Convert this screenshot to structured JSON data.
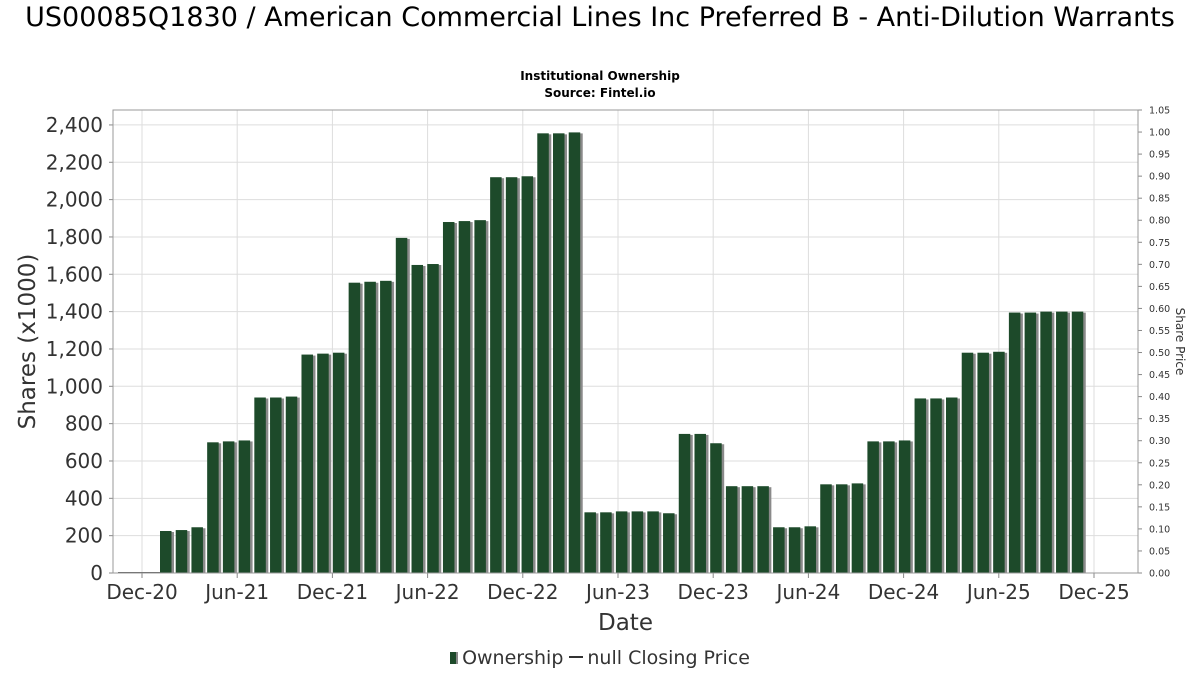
{
  "chart_data": {
    "type": "bar",
    "title": "US00085Q1830 / American Commercial Lines Inc Preferred B - Anti-Dilution Warrants",
    "subtitle": "Institutional Ownership",
    "source": "Source: Fintel.io",
    "xlabel": "Date",
    "ylabel": "Shares (x1000)",
    "y2label": "Share Price",
    "ylim": [
      0,
      2480
    ],
    "y2lim": [
      0,
      1.05
    ],
    "y_ticks": [
      0,
      200,
      400,
      600,
      800,
      1000,
      1200,
      1400,
      1600,
      1800,
      2000,
      2200,
      2400
    ],
    "y_tick_labels": [
      "0",
      "200",
      "400",
      "600",
      "800",
      "1,000",
      "1,200",
      "1,400",
      "1,600",
      "1,800",
      "2,000",
      "2,200",
      "2,400"
    ],
    "y2_ticks": [
      "0.00",
      "0.05",
      "0.10",
      "0.15",
      "0.20",
      "0.25",
      "0.30",
      "0.35",
      "0.40",
      "0.45",
      "0.50",
      "0.55",
      "0.60",
      "0.65",
      "0.70",
      "0.75",
      "0.80",
      "0.85",
      "0.90",
      "0.95",
      "1.00",
      "1.05"
    ],
    "x_ticks": [
      "Dec-20",
      "Jun-21",
      "Dec-21",
      "Jun-22",
      "Dec-22",
      "Jun-23",
      "Dec-23",
      "Jun-24",
      "Dec-24",
      "Jun-25",
      "Dec-25"
    ],
    "grid": true,
    "legend_position": "bottom",
    "legend": [
      {
        "name": "Ownership",
        "kind": "bar"
      },
      {
        "name": "null Closing Price",
        "kind": "line"
      }
    ],
    "series": [
      {
        "name": "Ownership",
        "color": "#1d4a2a",
        "values": [
          225,
          230,
          245,
          700,
          705,
          710,
          940,
          940,
          945,
          1170,
          1175,
          1180,
          1555,
          1560,
          1565,
          1795,
          1650,
          1655,
          1880,
          1885,
          1890,
          2120,
          2120,
          2125,
          2355,
          2355,
          2360,
          325,
          325,
          330,
          330,
          330,
          320,
          745,
          745,
          695,
          465,
          465,
          465,
          245,
          245,
          250,
          475,
          475,
          480,
          705,
          705,
          710,
          935,
          935,
          940,
          1180,
          1180,
          1185,
          1395,
          1395,
          1400,
          1400,
          1400
        ]
      }
    ]
  }
}
